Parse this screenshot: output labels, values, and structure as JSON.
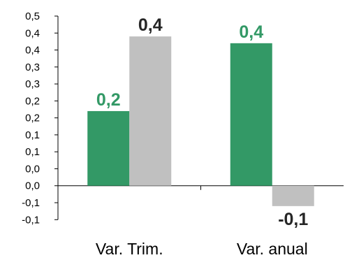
{
  "chart_data": {
    "type": "bar",
    "categories": [
      "Var. Trim.",
      "Var. anual"
    ],
    "series": [
      {
        "color": "#339966",
        "values": [
          0.22,
          0.42
        ],
        "labels": [
          "0,2",
          "0,4"
        ],
        "label_color": "#339966"
      },
      {
        "color": "#c0c0c0",
        "values": [
          0.44,
          -0.06
        ],
        "labels": [
          "0,4",
          "-0,1"
        ],
        "label_color": "#262626"
      }
    ],
    "ylim": [
      -0.12,
      0.5
    ],
    "y_ticks": [
      {
        "value": 0.5,
        "label": "0,5"
      },
      {
        "value": 0.45,
        "label": "0,4"
      },
      {
        "value": 0.4,
        "label": "0,4"
      },
      {
        "value": 0.35,
        "label": "0,3"
      },
      {
        "value": 0.3,
        "label": "0,3"
      },
      {
        "value": 0.25,
        "label": "0,2"
      },
      {
        "value": 0.2,
        "label": "0,2"
      },
      {
        "value": 0.15,
        "label": "0,1"
      },
      {
        "value": 0.1,
        "label": "0,1"
      },
      {
        "value": 0.05,
        "label": "0,0"
      },
      {
        "value": 0.0,
        "label": "0,0"
      },
      {
        "value": -0.05,
        "label": "-0,1"
      },
      {
        "value": -0.1,
        "label": "-0,1"
      }
    ],
    "grid": false,
    "legend": "none",
    "title": "",
    "xlabel": "",
    "ylabel": ""
  }
}
